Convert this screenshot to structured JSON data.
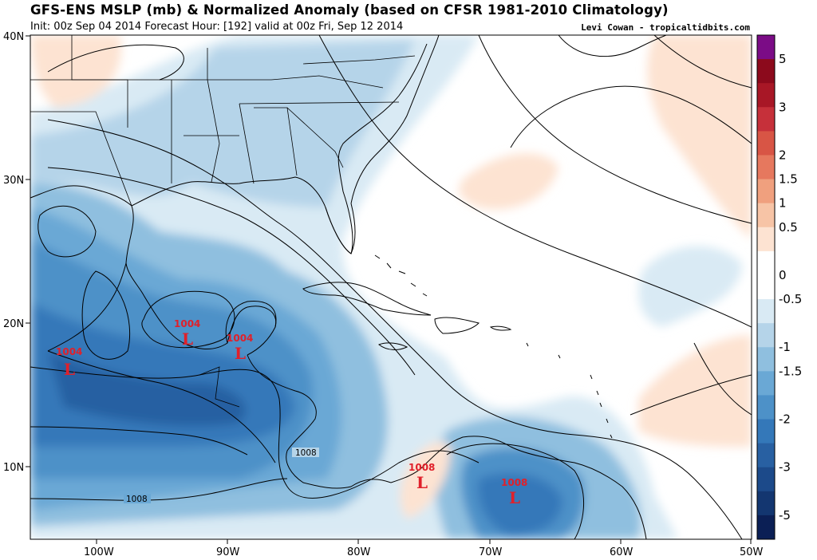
{
  "header": {
    "title": "GFS-ENS MSLP (mb) & Normalized Anomaly (based on CFSR 1981-2010 Climatology)",
    "subtitle": "Init: 00z Sep 04 2014 Forecast Hour: [192] valid at 00z Fri, Sep 12 2014",
    "credit": "Levi Cowan - tropicaltidbits.com"
  },
  "map": {
    "lat_labels": [
      "40N",
      "30N",
      "20N",
      "10N"
    ],
    "lon_labels": [
      "100W",
      "90W",
      "80W",
      "70W",
      "60W",
      "50W"
    ],
    "lows": [
      {
        "pressure": "1004",
        "letter": "L"
      },
      {
        "pressure": "1004",
        "letter": "L"
      },
      {
        "pressure": "1004",
        "letter": "L"
      },
      {
        "pressure": "1008",
        "letter": "L"
      },
      {
        "pressure": "1008",
        "letter": "L"
      }
    ],
    "isobar_labels": [
      "1008",
      "1008"
    ]
  },
  "colorbar": {
    "labels": [
      "5",
      "3",
      "2",
      "1.5",
      "1",
      "0.5",
      "0",
      "-0.5",
      "-1",
      "-1.5",
      "-2",
      "-3",
      "-5"
    ],
    "colors": [
      "#7b0c86",
      "#8c0a1c",
      "#a81726",
      "#c6303a",
      "#d85545",
      "#e6785e",
      "#f0a07e",
      "#f7c4a6",
      "#fde3d2",
      "#ffffff",
      "#ffffff",
      "#d9eaf4",
      "#b5d4e9",
      "#8fbfdf",
      "#6aa8d5",
      "#4d91c8",
      "#3478b9",
      "#2860a2",
      "#1c4a8a",
      "#133670",
      "#0b1f55"
    ]
  }
}
